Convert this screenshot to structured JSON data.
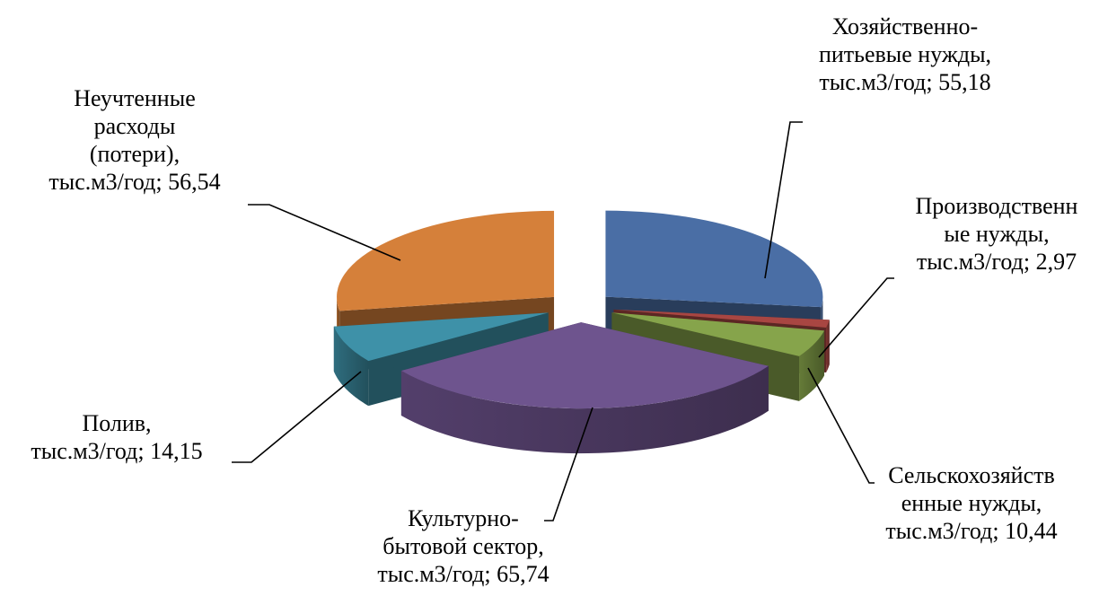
{
  "chart_data": {
    "type": "pie",
    "style": "3d-exploded",
    "slices": [
      {
        "label_lines": [
          "Хозяйственно-",
          "питьевые нужды,",
          "тыс.м3/год; 55,18"
        ],
        "value": 55.18,
        "color": "#4A6EA5"
      },
      {
        "label_lines": [
          "Производственн",
          "ые нужды,",
          "тыс.м3/год; 2,97"
        ],
        "value": 2.97,
        "color": "#A84642"
      },
      {
        "label_lines": [
          "Сельскохозяйств",
          "енные нужды,",
          "тыс.м3/год; 10,44"
        ],
        "value": 10.44,
        "color": "#86A44B"
      },
      {
        "label_lines": [
          "Культурно-",
          "бытовой сектор,",
          "тыс.м3/год; 65,74"
        ],
        "value": 65.74,
        "color": "#6E548E"
      },
      {
        "label_lines": [
          "Полив,",
          "тыс.м3/год; 14,15"
        ],
        "value": 14.15,
        "color": "#3E91A8"
      },
      {
        "label_lines": [
          "Неучтенные",
          "расходы",
          "(потери),",
          "тыс.м3/год; 56,54"
        ],
        "value": 56.54,
        "color": "#D5803A"
      }
    ]
  }
}
